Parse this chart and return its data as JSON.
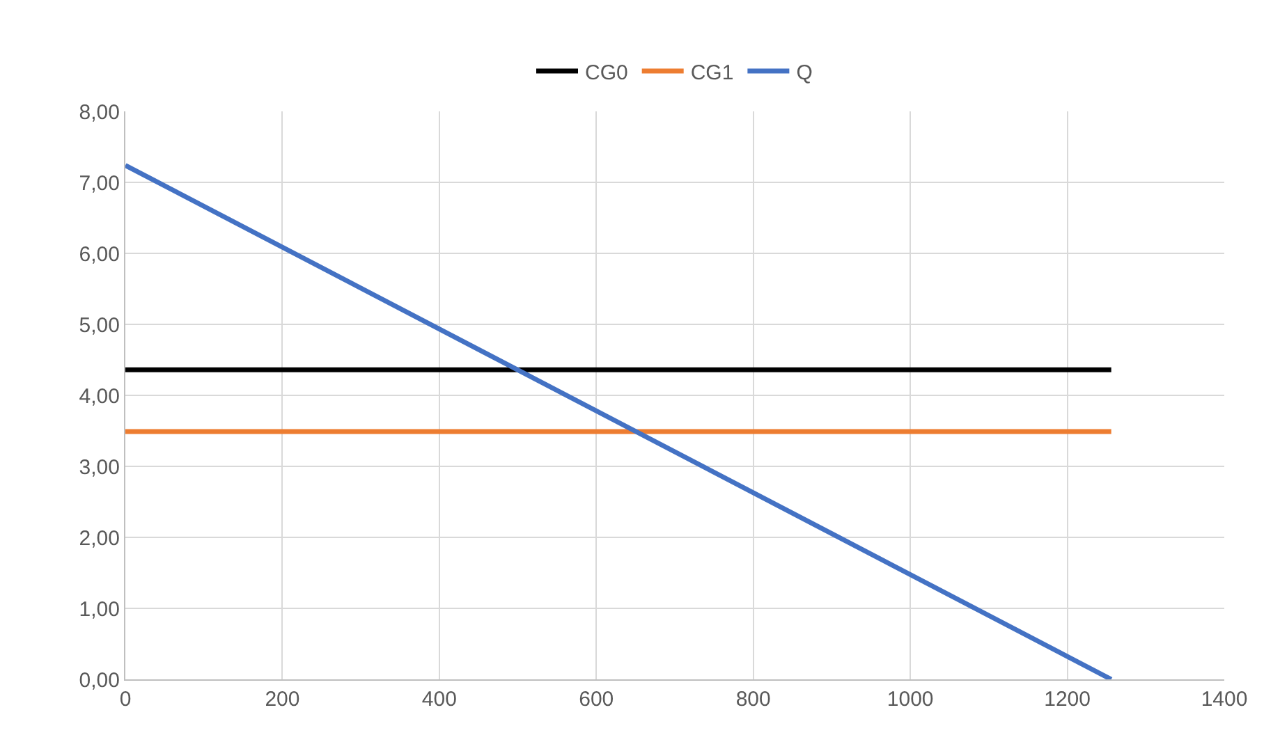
{
  "chart_data": {
    "type": "line",
    "x": [
      0,
      1256
    ],
    "series": [
      {
        "name": "CG0",
        "color": "#000000",
        "values": [
          4.36,
          4.36
        ]
      },
      {
        "name": "CG1",
        "color": "#ed7d31",
        "values": [
          3.49,
          3.49
        ]
      },
      {
        "name": "Q",
        "color": "#4472c4",
        "values": [
          7.24,
          0
        ]
      }
    ],
    "xlim": [
      0,
      1400
    ],
    "xticks": [
      0,
      200,
      400,
      600,
      800,
      1000,
      1200,
      1400
    ],
    "ylim": [
      0,
      8
    ],
    "yticks": [
      {
        "value": 0,
        "label": "0,00"
      },
      {
        "value": 1,
        "label": "1,00"
      },
      {
        "value": 2,
        "label": "2,00"
      },
      {
        "value": 3,
        "label": "3,00"
      },
      {
        "value": 4,
        "label": "4,00"
      },
      {
        "value": 5,
        "label": "5,00"
      },
      {
        "value": 6,
        "label": "6,00"
      },
      {
        "value": 7,
        "label": "7,00"
      },
      {
        "value": 8,
        "label": "8,00"
      }
    ],
    "grid": true,
    "legend": "top",
    "marker": "none",
    "line_style": "solid"
  }
}
